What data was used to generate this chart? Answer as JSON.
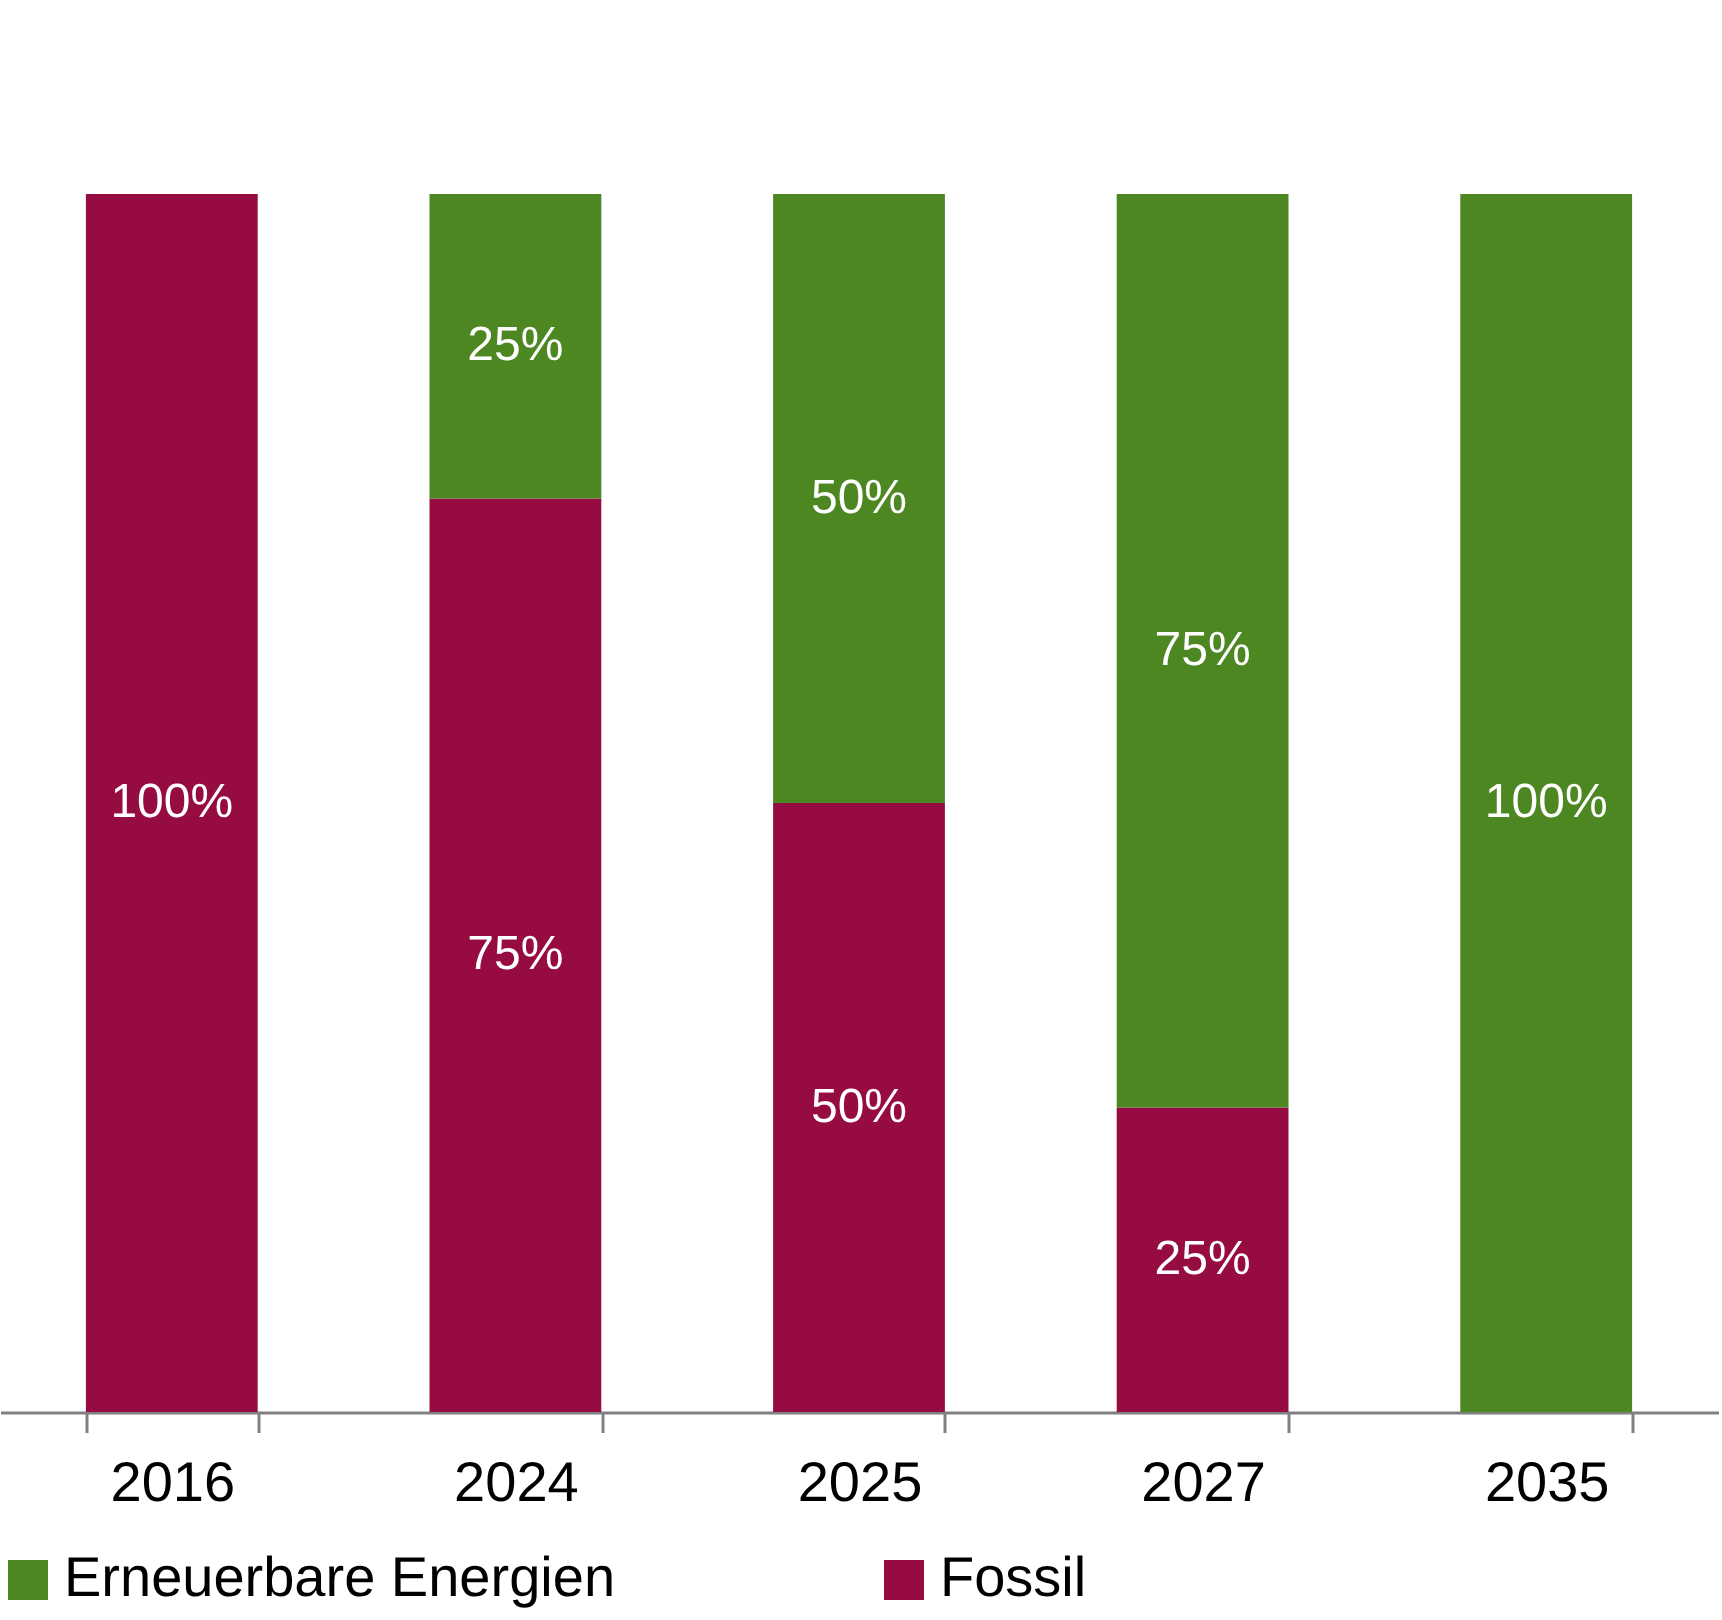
{
  "chart_data": {
    "type": "bar",
    "stacked": true,
    "legend": "bottom",
    "categories": [
      "2016",
      "2024",
      "2025",
      "2027",
      "2035"
    ],
    "series": [
      {
        "name": "Fossil",
        "color": "#960c42",
        "values": [
          100,
          75,
          50,
          25,
          0
        ],
        "value_labels": [
          "100%",
          "75%",
          "50%",
          "25%",
          null
        ]
      },
      {
        "name": "Erneuerbare Energien",
        "color": "#4d8722",
        "values": [
          0,
          25,
          50,
          75,
          100
        ],
        "value_labels": [
          null,
          "25%",
          "50%",
          "75%",
          "100%"
        ]
      }
    ]
  }
}
